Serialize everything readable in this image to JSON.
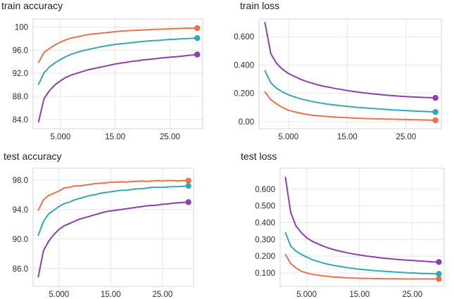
{
  "colors": {
    "orange": "#e8734a",
    "teal": "#35a8b2",
    "purple": "#8e3fad"
  },
  "chart_data": [
    {
      "type": "line",
      "title": "train accuracy",
      "xlabel": "",
      "ylabel": "",
      "xlim": [
        0,
        31
      ],
      "ylim": [
        82.4,
        101.4
      ],
      "x_ticks": [
        5,
        15,
        25
      ],
      "x_tick_labels": [
        "5.000",
        "15.00",
        "25.00"
      ],
      "y_ticks": [
        84,
        88,
        92,
        96,
        100
      ],
      "y_tick_labels": [
        "84.0",
        "88.0",
        "92.0",
        "96.0",
        "100"
      ],
      "x": [
        1,
        2,
        3,
        4,
        5,
        6,
        7,
        8,
        9,
        10,
        11,
        12,
        13,
        14,
        15,
        16,
        17,
        18,
        19,
        20,
        21,
        22,
        23,
        24,
        25,
        26,
        27,
        28,
        29,
        30
      ],
      "series": [
        {
          "color": "orange",
          "values": [
            93.9,
            95.6,
            96.3,
            96.9,
            97.4,
            97.8,
            98.1,
            98.3,
            98.5,
            98.7,
            98.8,
            98.9,
            99.0,
            99.1,
            99.2,
            99.3,
            99.35,
            99.4,
            99.45,
            99.5,
            99.55,
            99.6,
            99.62,
            99.65,
            99.7,
            99.72,
            99.75,
            99.78,
            99.8,
            99.82
          ]
        },
        {
          "color": "teal",
          "values": [
            90.1,
            92.1,
            93.1,
            93.8,
            94.4,
            94.9,
            95.3,
            95.6,
            95.9,
            96.1,
            96.3,
            96.5,
            96.7,
            96.85,
            97.0,
            97.1,
            97.2,
            97.3,
            97.4,
            97.5,
            97.6,
            97.65,
            97.7,
            97.8,
            97.85,
            97.9,
            97.95,
            98.0,
            98.05,
            98.1
          ]
        },
        {
          "color": "purple",
          "values": [
            83.6,
            87.6,
            89.0,
            90.0,
            90.7,
            91.3,
            91.7,
            92.0,
            92.3,
            92.6,
            92.8,
            93.0,
            93.2,
            93.4,
            93.6,
            93.75,
            93.9,
            94.05,
            94.15,
            94.3,
            94.4,
            94.5,
            94.6,
            94.7,
            94.8,
            94.85,
            94.95,
            95.05,
            95.15,
            95.25
          ]
        }
      ]
    },
    {
      "type": "line",
      "title": "train loss",
      "xlabel": "",
      "ylabel": "",
      "xlim": [
        0,
        31
      ],
      "ylim": [
        -0.05,
        0.725
      ],
      "x_ticks": [
        5,
        15,
        25
      ],
      "x_tick_labels": [
        "5.000",
        "15.00",
        "25.00"
      ],
      "y_ticks": [
        0,
        0.2,
        0.4,
        0.6
      ],
      "y_tick_labels": [
        "0.00",
        "0.200",
        "0.400",
        "0.600"
      ],
      "x": [
        1,
        2,
        3,
        4,
        5,
        6,
        7,
        8,
        9,
        10,
        11,
        12,
        13,
        14,
        15,
        16,
        17,
        18,
        19,
        20,
        21,
        22,
        23,
        24,
        25,
        26,
        27,
        28,
        29,
        30
      ],
      "series": [
        {
          "color": "orange",
          "values": [
            0.21,
            0.155,
            0.125,
            0.1,
            0.08,
            0.07,
            0.06,
            0.052,
            0.046,
            0.042,
            0.038,
            0.035,
            0.032,
            0.03,
            0.028,
            0.026,
            0.024,
            0.022,
            0.021,
            0.02,
            0.019,
            0.018,
            0.017,
            0.016,
            0.015,
            0.014,
            0.013,
            0.012,
            0.011,
            0.01
          ]
        },
        {
          "color": "teal",
          "values": [
            0.36,
            0.275,
            0.235,
            0.21,
            0.19,
            0.175,
            0.162,
            0.152,
            0.143,
            0.135,
            0.128,
            0.122,
            0.117,
            0.112,
            0.108,
            0.104,
            0.1,
            0.097,
            0.094,
            0.091,
            0.088,
            0.085,
            0.082,
            0.08,
            0.078,
            0.076,
            0.074,
            0.072,
            0.07,
            0.068
          ]
        },
        {
          "color": "purple",
          "values": [
            0.7,
            0.48,
            0.41,
            0.37,
            0.34,
            0.32,
            0.3,
            0.285,
            0.272,
            0.26,
            0.25,
            0.242,
            0.234,
            0.227,
            0.22,
            0.214,
            0.208,
            0.203,
            0.198,
            0.194,
            0.19,
            0.186,
            0.183,
            0.18,
            0.177,
            0.175,
            0.173,
            0.171,
            0.17,
            0.168
          ]
        }
      ]
    },
    {
      "type": "line",
      "title": "test accuracy",
      "xlabel": "",
      "ylabel": "",
      "xlim": [
        0,
        31
      ],
      "ylim": [
        83.6,
        99.6
      ],
      "x_ticks": [
        5,
        15,
        25
      ],
      "x_tick_labels": [
        "5.000",
        "15.00",
        "25.00"
      ],
      "y_ticks": [
        86,
        90,
        94,
        98
      ],
      "y_tick_labels": [
        "86.0",
        "90.0",
        "94.0",
        "98.0"
      ],
      "x": [
        1,
        2,
        3,
        4,
        5,
        6,
        7,
        8,
        9,
        10,
        11,
        12,
        13,
        14,
        15,
        16,
        17,
        18,
        19,
        20,
        21,
        22,
        23,
        24,
        25,
        26,
        27,
        28,
        29,
        30
      ],
      "series": [
        {
          "color": "orange",
          "values": [
            93.9,
            95.3,
            95.9,
            96.2,
            96.5,
            96.9,
            97.0,
            97.2,
            97.2,
            97.3,
            97.4,
            97.5,
            97.55,
            97.6,
            97.7,
            97.7,
            97.75,
            97.7,
            97.8,
            97.8,
            97.85,
            97.8,
            97.85,
            97.9,
            97.85,
            97.9,
            97.9,
            97.85,
            97.9,
            97.9
          ]
        },
        {
          "color": "teal",
          "values": [
            90.5,
            92.4,
            93.4,
            93.9,
            94.4,
            94.8,
            95.0,
            95.3,
            95.5,
            95.7,
            95.9,
            96.0,
            96.2,
            96.3,
            96.4,
            96.5,
            96.6,
            96.6,
            96.7,
            96.8,
            96.8,
            96.9,
            97.0,
            97.0,
            97.0,
            97.05,
            97.1,
            97.1,
            97.15,
            97.2
          ]
        },
        {
          "color": "purple",
          "values": [
            84.9,
            88.4,
            89.7,
            90.6,
            91.3,
            91.8,
            92.1,
            92.4,
            92.7,
            92.9,
            93.1,
            93.3,
            93.5,
            93.7,
            93.8,
            93.9,
            94.0,
            94.1,
            94.2,
            94.3,
            94.4,
            94.5,
            94.55,
            94.6,
            94.7,
            94.75,
            94.85,
            94.9,
            94.95,
            95.0
          ]
        }
      ]
    },
    {
      "type": "line",
      "title": "test loss",
      "xlabel": "",
      "ylabel": "",
      "xlim": [
        0,
        31
      ],
      "ylim": [
        0.02,
        0.725
      ],
      "x_ticks": [
        5,
        15,
        25
      ],
      "x_tick_labels": [
        "5.000",
        "15.00",
        "25.00"
      ],
      "y_ticks": [
        0.1,
        0.2,
        0.3,
        0.4,
        0.5,
        0.6
      ],
      "y_tick_labels": [
        "0.100",
        "0.200",
        "0.300",
        "0.400",
        "0.500",
        "0.600"
      ],
      "x": [
        1,
        2,
        3,
        4,
        5,
        6,
        7,
        8,
        9,
        10,
        11,
        12,
        13,
        14,
        15,
        16,
        17,
        18,
        19,
        20,
        21,
        22,
        23,
        24,
        25,
        26,
        27,
        28,
        29,
        30
      ],
      "series": [
        {
          "color": "orange",
          "values": [
            0.21,
            0.155,
            0.13,
            0.11,
            0.1,
            0.092,
            0.087,
            0.083,
            0.079,
            0.076,
            0.074,
            0.072,
            0.07,
            0.069,
            0.068,
            0.067,
            0.067,
            0.066,
            0.066,
            0.065,
            0.065,
            0.065,
            0.064,
            0.064,
            0.064,
            0.064,
            0.064,
            0.064,
            0.064,
            0.064
          ]
        },
        {
          "color": "teal",
          "values": [
            0.34,
            0.26,
            0.23,
            0.21,
            0.195,
            0.18,
            0.17,
            0.16,
            0.152,
            0.145,
            0.14,
            0.135,
            0.13,
            0.126,
            0.122,
            0.119,
            0.116,
            0.113,
            0.111,
            0.109,
            0.107,
            0.105,
            0.103,
            0.101,
            0.1,
            0.098,
            0.097,
            0.096,
            0.095,
            0.094
          ]
        },
        {
          "color": "purple",
          "values": [
            0.67,
            0.46,
            0.38,
            0.34,
            0.31,
            0.29,
            0.275,
            0.262,
            0.25,
            0.24,
            0.232,
            0.225,
            0.218,
            0.212,
            0.207,
            0.202,
            0.198,
            0.194,
            0.19,
            0.187,
            0.184,
            0.181,
            0.178,
            0.176,
            0.174,
            0.172,
            0.17,
            0.168,
            0.166,
            0.165
          ]
        }
      ]
    }
  ]
}
